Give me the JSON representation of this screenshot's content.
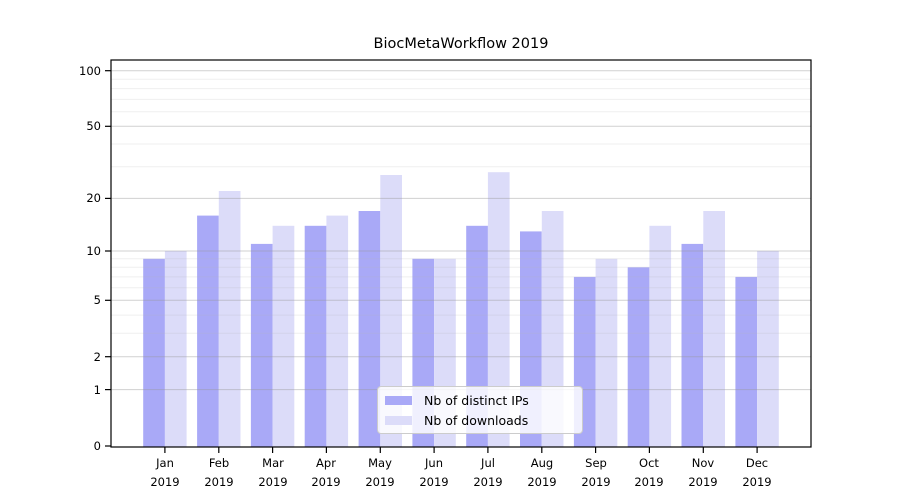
{
  "chart_data": {
    "type": "bar",
    "title": "BiocMetaWorkflow 2019",
    "categories": [
      "Jan 2019",
      "Feb 2019",
      "Mar 2019",
      "Apr 2019",
      "May 2019",
      "Jun 2019",
      "Jul 2019",
      "Aug 2019",
      "Sep 2019",
      "Oct 2019",
      "Nov 2019",
      "Dec 2019"
    ],
    "series": [
      {
        "name": "Nb of distinct IPs",
        "color": "#a9a9f7",
        "values": [
          9,
          16,
          11,
          14,
          17,
          9,
          14,
          13,
          7,
          8,
          11,
          7
        ]
      },
      {
        "name": "Nb of downloads",
        "color": "#dcdcf9",
        "values": [
          10,
          22,
          14,
          16,
          27,
          9,
          28,
          17,
          9,
          14,
          17,
          10
        ]
      }
    ],
    "y_axis": {
      "scale": "log1p",
      "major_ticks": [
        0,
        1,
        2,
        5,
        10,
        20,
        50,
        100
      ],
      "minor_ticks": [
        3,
        4,
        6,
        7,
        8,
        9,
        30,
        40,
        60,
        70,
        80,
        90
      ],
      "ylim": [
        0,
        115
      ]
    },
    "legend": {
      "position": "lower center",
      "framed": true
    },
    "grid": true,
    "colors": {
      "background": "#ffffff",
      "axis": "#000000",
      "grid_major": "rgba(150,150,150,0.45)",
      "grid_minor": "rgba(180,180,180,0.22)",
      "text": "#000000"
    }
  }
}
